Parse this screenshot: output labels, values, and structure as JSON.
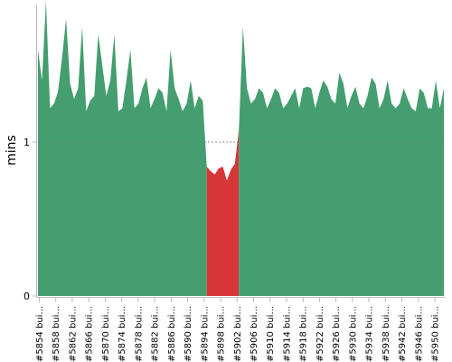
{
  "chart_data": {
    "type": "area",
    "ylabel": "mins",
    "yticks": [
      {
        "value": 0,
        "label": "0"
      },
      {
        "value": 1,
        "label": "1"
      }
    ],
    "ylim": [
      0,
      1.9
    ],
    "reference_line": 1,
    "colors": {
      "success": "#449E6F",
      "failure": "#D63638"
    },
    "x_labels": [
      "#5854 bui...",
      "#5858 bui...",
      "#5862 bui...",
      "#5866 bui...",
      "#5870 bui...",
      "#5874 bui...",
      "#5878 bui...",
      "#5882 bui...",
      "#5886 bui...",
      "#5890 bui...",
      "#5894 bui...",
      "#5898 bui...",
      "#5902 bui...",
      "#5906 bui...",
      "#5910 bui...",
      "#5914 bui...",
      "#5918 bui...",
      "#5922 bui...",
      "#5926 bui...",
      "#5930 bui...",
      "#5934 bui...",
      "#5938 bui...",
      "#5942 bui...",
      "#5946 bui...",
      "#5950 bui..."
    ],
    "series": [
      {
        "status": "success",
        "x": [
          5852,
          5853,
          5854,
          5855,
          5856,
          5857,
          5858,
          5859,
          5860,
          5861,
          5862,
          5863,
          5864,
          5865,
          5866,
          5867,
          5868,
          5869,
          5870,
          5871,
          5872,
          5873,
          5874,
          5875,
          5876,
          5877,
          5878,
          5879,
          5880,
          5881,
          5882,
          5883,
          5884,
          5885,
          5886,
          5887,
          5888,
          5889,
          5890,
          5891,
          5892,
          5893,
          5894
        ],
        "values": [
          1.6,
          1.4,
          1.92,
          1.22,
          1.25,
          1.33,
          1.55,
          1.8,
          1.38,
          1.28,
          1.35,
          1.75,
          1.2,
          1.27,
          1.3,
          1.7,
          1.5,
          1.3,
          1.4,
          1.7,
          1.2,
          1.22,
          1.4,
          1.6,
          1.22,
          1.25,
          1.35,
          1.42,
          1.22,
          1.28,
          1.35,
          1.32,
          1.2,
          1.6,
          1.35,
          1.28,
          1.2,
          1.25,
          1.4,
          1.22,
          1.3,
          1.27,
          0.84
        ]
      },
      {
        "status": "failure",
        "x": [
          5894,
          5895,
          5896,
          5897,
          5898,
          5899,
          5900,
          5901,
          5902
        ],
        "values": [
          0.84,
          0.81,
          0.79,
          0.83,
          0.84,
          0.75,
          0.82,
          0.86,
          1.08
        ]
      },
      {
        "status": "success",
        "x": [
          5902,
          5903,
          5904,
          5905,
          5906,
          5907,
          5908,
          5909,
          5910,
          5911,
          5912,
          5913,
          5914,
          5915,
          5916,
          5917,
          5918,
          5919,
          5920,
          5921,
          5922,
          5923,
          5924,
          5925,
          5926,
          5927,
          5928,
          5929,
          5930,
          5931,
          5932,
          5933,
          5934,
          5935,
          5936,
          5937,
          5938,
          5939,
          5940,
          5941,
          5942,
          5943,
          5944,
          5945,
          5946,
          5947,
          5948,
          5949,
          5950,
          5951,
          5952,
          5953
        ],
        "values": [
          1.08,
          1.75,
          1.35,
          1.25,
          1.28,
          1.35,
          1.32,
          1.22,
          1.28,
          1.35,
          1.32,
          1.22,
          1.25,
          1.3,
          1.35,
          1.22,
          1.35,
          1.36,
          1.35,
          1.22,
          1.32,
          1.4,
          1.36,
          1.28,
          1.25,
          1.45,
          1.38,
          1.22,
          1.3,
          1.36,
          1.25,
          1.22,
          1.3,
          1.42,
          1.38,
          1.22,
          1.28,
          1.4,
          1.25,
          1.22,
          1.25,
          1.35,
          1.28,
          1.22,
          1.2,
          1.35,
          1.32,
          1.22,
          1.22,
          1.4,
          1.22,
          1.35
        ]
      }
    ]
  }
}
